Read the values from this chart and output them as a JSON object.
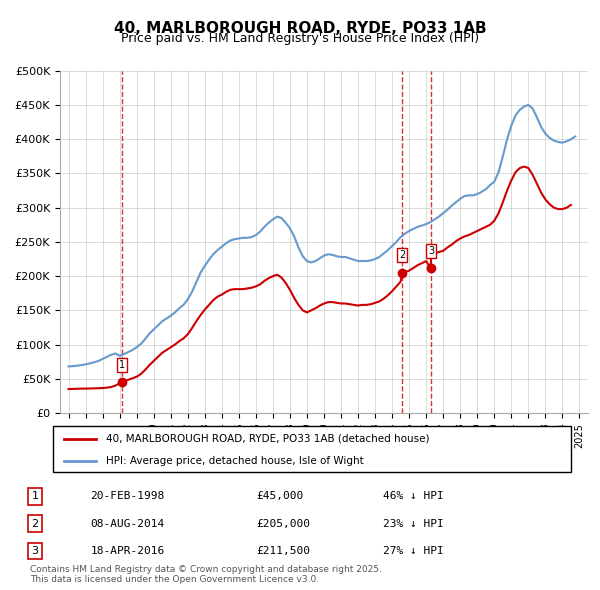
{
  "title_line1": "40, MARLBOROUGH ROAD, RYDE, PO33 1AB",
  "title_line2": "Price paid vs. HM Land Registry's House Price Index (HPI)",
  "hpi_color": "#6699cc",
  "price_color": "#cc0000",
  "dashed_line_color": "#cc0000",
  "background_color": "#ffffff",
  "grid_color": "#cccccc",
  "ylim": [
    0,
    500000
  ],
  "yticks": [
    0,
    50000,
    100000,
    150000,
    200000,
    250000,
    300000,
    350000,
    400000,
    450000,
    500000
  ],
  "ytick_labels": [
    "£0",
    "£50K",
    "£100K",
    "£150K",
    "£200K",
    "£250K",
    "£300K",
    "£350K",
    "£400K",
    "£450K",
    "£500K"
  ],
  "xlim_start": 1994.5,
  "xlim_end": 2025.5,
  "xticks": [
    1995,
    1996,
    1997,
    1998,
    1999,
    2000,
    2001,
    2002,
    2003,
    2004,
    2005,
    2006,
    2007,
    2008,
    2009,
    2010,
    2011,
    2012,
    2013,
    2014,
    2015,
    2016,
    2017,
    2018,
    2019,
    2020,
    2021,
    2022,
    2023,
    2024,
    2025
  ],
  "legend_label_red": "40, MARLBOROUGH ROAD, RYDE, PO33 1AB (detached house)",
  "legend_label_blue": "HPI: Average price, detached house, Isle of Wight",
  "transactions": [
    {
      "label": "1",
      "date_x": 1998.13,
      "price": 45000,
      "date_str": "20-FEB-1998",
      "price_str": "£45,000",
      "pct_str": "46% ↓ HPI"
    },
    {
      "label": "2",
      "date_x": 2014.6,
      "price": 205000,
      "date_str": "08-AUG-2014",
      "price_str": "£205,000",
      "pct_str": "23% ↓ HPI"
    },
    {
      "label": "3",
      "date_x": 2016.3,
      "price": 211500,
      "date_str": "18-APR-2016",
      "price_str": "£211,500",
      "pct_str": "27% ↓ HPI"
    }
  ],
  "footer_text": "Contains HM Land Registry data © Crown copyright and database right 2025.\nThis data is licensed under the Open Government Licence v3.0.",
  "hpi_data_x": [
    1995.0,
    1995.25,
    1995.5,
    1995.75,
    1996.0,
    1996.25,
    1996.5,
    1996.75,
    1997.0,
    1997.25,
    1997.5,
    1997.75,
    1998.0,
    1998.25,
    1998.5,
    1998.75,
    1999.0,
    1999.25,
    1999.5,
    1999.75,
    2000.0,
    2000.25,
    2000.5,
    2000.75,
    2001.0,
    2001.25,
    2001.5,
    2001.75,
    2002.0,
    2002.25,
    2002.5,
    2002.75,
    2003.0,
    2003.25,
    2003.5,
    2003.75,
    2004.0,
    2004.25,
    2004.5,
    2004.75,
    2005.0,
    2005.25,
    2005.5,
    2005.75,
    2006.0,
    2006.25,
    2006.5,
    2006.75,
    2007.0,
    2007.25,
    2007.5,
    2007.75,
    2008.0,
    2008.25,
    2008.5,
    2008.75,
    2009.0,
    2009.25,
    2009.5,
    2009.75,
    2010.0,
    2010.25,
    2010.5,
    2010.75,
    2011.0,
    2011.25,
    2011.5,
    2011.75,
    2012.0,
    2012.25,
    2012.5,
    2012.75,
    2013.0,
    2013.25,
    2013.5,
    2013.75,
    2014.0,
    2014.25,
    2014.5,
    2014.75,
    2015.0,
    2015.25,
    2015.5,
    2015.75,
    2016.0,
    2016.25,
    2016.5,
    2016.75,
    2017.0,
    2017.25,
    2017.5,
    2017.75,
    2018.0,
    2018.25,
    2018.5,
    2018.75,
    2019.0,
    2019.25,
    2019.5,
    2019.75,
    2020.0,
    2020.25,
    2020.5,
    2020.75,
    2021.0,
    2021.25,
    2021.5,
    2021.75,
    2022.0,
    2022.25,
    2022.5,
    2022.75,
    2023.0,
    2023.25,
    2023.5,
    2023.75,
    2024.0,
    2024.25,
    2024.5,
    2024.75
  ],
  "hpi_data_y": [
    68000,
    68500,
    69000,
    70000,
    71000,
    72500,
    74000,
    76000,
    79000,
    82000,
    85000,
    87000,
    83500,
    86000,
    89000,
    92000,
    96000,
    101000,
    108000,
    116000,
    122000,
    128000,
    134000,
    138000,
    142000,
    147000,
    153000,
    158000,
    166000,
    177000,
    191000,
    205000,
    215000,
    224000,
    232000,
    238000,
    243000,
    248000,
    252000,
    254000,
    255000,
    256000,
    256000,
    257000,
    260000,
    265000,
    272000,
    278000,
    283000,
    287000,
    285000,
    278000,
    270000,
    258000,
    242000,
    229000,
    222000,
    220000,
    222000,
    226000,
    230000,
    232000,
    231000,
    229000,
    228000,
    228000,
    226000,
    224000,
    222000,
    222000,
    222000,
    223000,
    225000,
    228000,
    233000,
    238000,
    244000,
    250000,
    257000,
    262000,
    266000,
    269000,
    272000,
    274000,
    276000,
    279000,
    283000,
    287000,
    292000,
    297000,
    303000,
    308000,
    313000,
    317000,
    318000,
    318000,
    320000,
    323000,
    327000,
    333000,
    338000,
    352000,
    375000,
    400000,
    420000,
    435000,
    443000,
    448000,
    450000,
    445000,
    432000,
    418000,
    408000,
    402000,
    398000,
    396000,
    395000,
    397000,
    400000,
    404000
  ],
  "price_data_x": [
    1995.0,
    1995.25,
    1995.5,
    1995.75,
    1996.0,
    1996.25,
    1996.5,
    1996.75,
    1997.0,
    1997.25,
    1997.5,
    1997.75,
    1998.13,
    1999.0,
    1999.25,
    1999.5,
    1999.75,
    2000.0,
    2000.25,
    2000.5,
    2000.75,
    2001.0,
    2001.25,
    2001.5,
    2001.75,
    2002.0,
    2002.25,
    2002.5,
    2002.75,
    2003.0,
    2003.25,
    2003.5,
    2003.75,
    2004.0,
    2004.25,
    2004.5,
    2004.75,
    2005.0,
    2005.25,
    2005.5,
    2005.75,
    2006.0,
    2006.25,
    2006.5,
    2006.75,
    2007.0,
    2007.25,
    2007.5,
    2007.75,
    2008.0,
    2008.25,
    2008.5,
    2008.75,
    2009.0,
    2009.25,
    2009.5,
    2009.75,
    2010.0,
    2010.25,
    2010.5,
    2010.75,
    2011.0,
    2011.25,
    2011.5,
    2011.75,
    2012.0,
    2012.25,
    2012.5,
    2012.75,
    2013.0,
    2013.25,
    2013.5,
    2013.75,
    2014.0,
    2014.25,
    2014.5,
    2014.6,
    2015.0,
    2015.25,
    2015.5,
    2015.75,
    2016.0,
    2016.25,
    2016.3,
    2017.0,
    2017.25,
    2017.5,
    2017.75,
    2018.0,
    2018.25,
    2018.5,
    2018.75,
    2019.0,
    2019.25,
    2019.5,
    2019.75,
    2020.0,
    2020.25,
    2020.5,
    2020.75,
    2021.0,
    2021.25,
    2021.5,
    2021.75,
    2022.0,
    2022.25,
    2022.5,
    2022.75,
    2023.0,
    2023.25,
    2023.5,
    2023.75,
    2024.0,
    2024.25,
    2024.5
  ],
  "price_data_y": [
    35000,
    35200,
    35400,
    35600,
    35700,
    35800,
    36000,
    36200,
    36500,
    37000,
    38000,
    40000,
    45000,
    53000,
    57000,
    63000,
    70000,
    76000,
    82000,
    88000,
    92000,
    96000,
    100000,
    105000,
    109000,
    115000,
    124000,
    134000,
    143000,
    151000,
    158000,
    165000,
    170000,
    173000,
    177000,
    180000,
    181000,
    181000,
    181000,
    182000,
    183000,
    185000,
    188000,
    193000,
    197000,
    200000,
    202000,
    198000,
    190000,
    180000,
    168000,
    158000,
    150000,
    147000,
    150000,
    153000,
    157000,
    160000,
    162000,
    162000,
    161000,
    160000,
    160000,
    159000,
    158000,
    157000,
    158000,
    158000,
    159000,
    161000,
    163000,
    167000,
    172000,
    178000,
    185000,
    192000,
    205000,
    208000,
    212000,
    216000,
    219000,
    222000,
    211500,
    232000,
    237000,
    242000,
    246000,
    251000,
    255000,
    258000,
    260000,
    263000,
    266000,
    269000,
    272000,
    275000,
    281000,
    292000,
    308000,
    325000,
    340000,
    352000,
    358000,
    360000,
    358000,
    348000,
    335000,
    322000,
    312000,
    305000,
    300000,
    298000,
    298000,
    300000,
    304000
  ]
}
